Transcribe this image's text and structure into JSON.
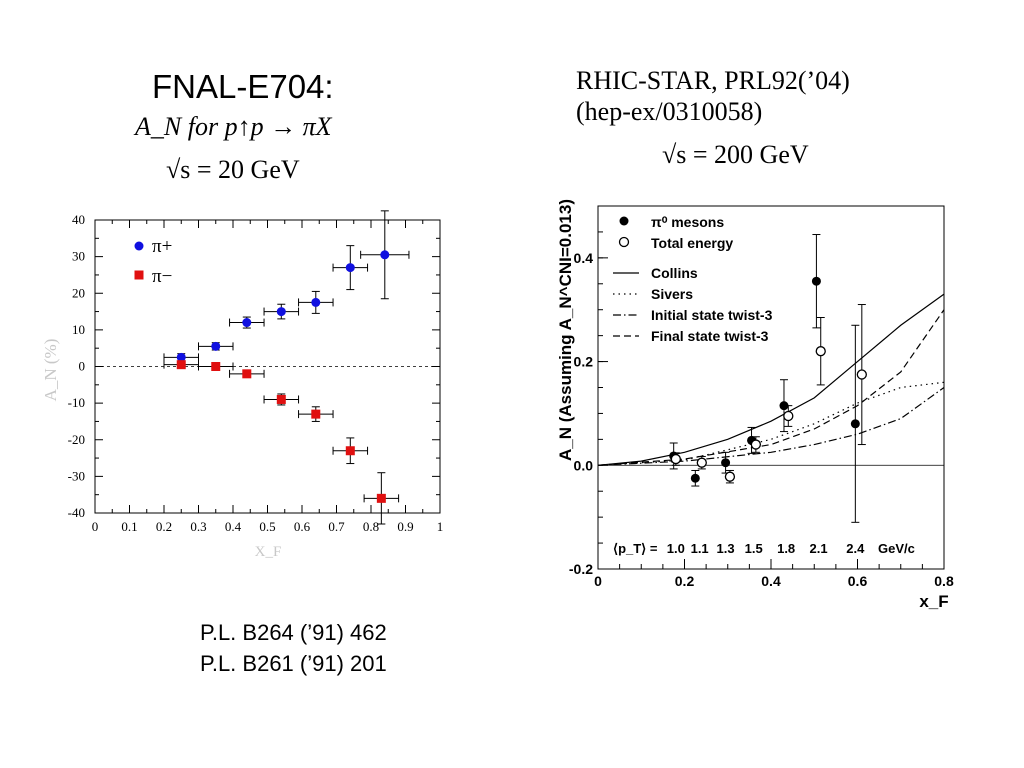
{
  "slide": {
    "left_title": "FNAL-E704:",
    "left_sub1": "A_N for p↑p → πX",
    "left_sub2": "√s = 20 GeV",
    "right_ref1": "RHIC-STAR, PRL92(’04)",
    "right_ref2": "(hep-ex/0310058)",
    "right_energy": "√s = 200 GeV",
    "refs": [
      "P.L. B264 (’91) 462",
      "P.L. B261 (’91) 201"
    ]
  },
  "chart_data": [
    {
      "type": "scatter",
      "xlabel": "X_F",
      "ylabel": "A_N (%)",
      "xlim": [
        0,
        1
      ],
      "ylim": [
        -40,
        40
      ],
      "xticks": [
        "0",
        "0.1",
        "0.2",
        "0.3",
        "0.4",
        "0.5",
        "0.6",
        "0.7",
        "0.8",
        "0.9",
        "1"
      ],
      "yticks": [
        "-40",
        "-30",
        "-20",
        "-10",
        "0",
        "10",
        "20",
        "30",
        "40"
      ],
      "zero_line": "dashed",
      "legend_position": "top-left",
      "series": [
        {
          "name": "π+",
          "color": "#1010e0",
          "marker": "circle",
          "points": [
            {
              "x": 0.25,
              "y": 2.5,
              "xerr": 0.05,
              "yerr": 1.0
            },
            {
              "x": 0.35,
              "y": 5.5,
              "xerr": 0.05,
              "yerr": 1.0
            },
            {
              "x": 0.44,
              "y": 12.0,
              "xerr": 0.05,
              "yerr": 1.5
            },
            {
              "x": 0.54,
              "y": 15.0,
              "xerr": 0.05,
              "yerr": 2.0
            },
            {
              "x": 0.64,
              "y": 17.5,
              "xerr": 0.05,
              "yerr": 3.0
            },
            {
              "x": 0.74,
              "y": 27.0,
              "xerr": 0.05,
              "yerr": 6.0
            },
            {
              "x": 0.84,
              "y": 30.5,
              "xerr": 0.07,
              "yerr": 12.0
            }
          ]
        },
        {
          "name": "π−",
          "color": "#e01010",
          "marker": "square",
          "points": [
            {
              "x": 0.25,
              "y": 0.5,
              "xerr": 0.05,
              "yerr": 1.0
            },
            {
              "x": 0.35,
              "y": 0.0,
              "xerr": 0.05,
              "yerr": 1.0
            },
            {
              "x": 0.44,
              "y": -2.0,
              "xerr": 0.05,
              "yerr": 1.0
            },
            {
              "x": 0.54,
              "y": -9.0,
              "xerr": 0.05,
              "yerr": 1.5
            },
            {
              "x": 0.64,
              "y": -13.0,
              "xerr": 0.05,
              "yerr": 2.0
            },
            {
              "x": 0.74,
              "y": -23.0,
              "xerr": 0.05,
              "yerr": 3.5
            },
            {
              "x": 0.83,
              "y": -36.0,
              "xerr": 0.05,
              "yerr": 7.0
            }
          ]
        }
      ]
    },
    {
      "type": "scatter",
      "xlabel": "x_F",
      "ylabel": "A_N (Assuming A_N^CNI=0.013)",
      "xlim": [
        0,
        0.8
      ],
      "ylim": [
        -0.2,
        0.5
      ],
      "xticks": [
        "0",
        "0.2",
        "0.4",
        "0.6",
        "0.8"
      ],
      "yticks": [
        "-0.2",
        "0.0",
        "0.2",
        "0.4"
      ],
      "legend_position": "top-left",
      "pt_label": "⟨p_T⟩ =",
      "pt_values": [
        "1.0",
        "1.1",
        "1.3",
        "1.5",
        "1.8",
        "2.1",
        "2.4"
      ],
      "pt_unit": "GeV/c",
      "series": [
        {
          "name": "π⁰ mesons",
          "marker": "filled-circle",
          "points": [
            {
              "x": 0.175,
              "y": 0.018,
              "yerr": 0.025
            },
            {
              "x": 0.225,
              "y": -0.025,
              "yerr": 0.015
            },
            {
              "x": 0.295,
              "y": 0.005,
              "yerr": 0.02
            },
            {
              "x": 0.355,
              "y": 0.048,
              "yerr": 0.025
            },
            {
              "x": 0.43,
              "y": 0.115,
              "yerr": 0.05
            },
            {
              "x": 0.505,
              "y": 0.355,
              "yerr": 0.09
            },
            {
              "x": 0.595,
              "y": 0.08,
              "yerr": 0.19
            }
          ]
        },
        {
          "name": "Total energy",
          "marker": "open-circle",
          "points": [
            {
              "x": 0.18,
              "y": 0.012,
              "yerr": 0.012
            },
            {
              "x": 0.24,
              "y": 0.005,
              "yerr": 0.012
            },
            {
              "x": 0.305,
              "y": -0.022,
              "yerr": 0.012
            },
            {
              "x": 0.365,
              "y": 0.04,
              "yerr": 0.015
            },
            {
              "x": 0.44,
              "y": 0.095,
              "yerr": 0.02
            },
            {
              "x": 0.515,
              "y": 0.22,
              "yerr": 0.065
            },
            {
              "x": 0.61,
              "y": 0.175,
              "yerr": 0.135
            }
          ]
        },
        {
          "name": "Collins",
          "line": "solid",
          "points": [
            [
              0,
              0
            ],
            [
              0.1,
              0.008
            ],
            [
              0.2,
              0.025
            ],
            [
              0.3,
              0.05
            ],
            [
              0.4,
              0.085
            ],
            [
              0.5,
              0.13
            ],
            [
              0.6,
              0.2
            ],
            [
              0.7,
              0.27
            ],
            [
              0.8,
              0.33
            ]
          ]
        },
        {
          "name": "Sivers",
          "line": "dotted",
          "points": [
            [
              0,
              0
            ],
            [
              0.2,
              0.01
            ],
            [
              0.4,
              0.05
            ],
            [
              0.5,
              0.08
            ],
            [
              0.6,
              0.12
            ],
            [
              0.7,
              0.15
            ],
            [
              0.8,
              0.16
            ]
          ]
        },
        {
          "name": "Initial state twist-3",
          "line": "dashdot",
          "points": [
            [
              0,
              0
            ],
            [
              0.2,
              0.008
            ],
            [
              0.4,
              0.025
            ],
            [
              0.5,
              0.04
            ],
            [
              0.6,
              0.06
            ],
            [
              0.7,
              0.09
            ],
            [
              0.8,
              0.15
            ]
          ]
        },
        {
          "name": "Final state twist-3",
          "line": "dashed",
          "points": [
            [
              0,
              0
            ],
            [
              0.2,
              0.012
            ],
            [
              0.4,
              0.04
            ],
            [
              0.5,
              0.07
            ],
            [
              0.6,
              0.115
            ],
            [
              0.7,
              0.18
            ],
            [
              0.8,
              0.3
            ]
          ]
        }
      ]
    }
  ]
}
